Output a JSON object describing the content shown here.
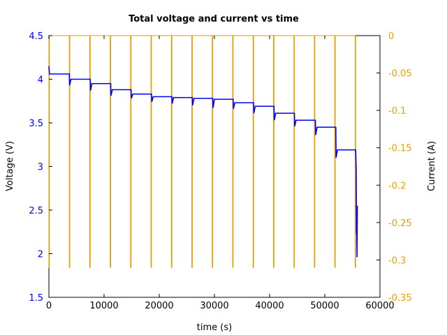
{
  "chart_data": {
    "type": "line",
    "title": "Total voltage and current vs time",
    "xlabel": "time (s)",
    "ylabel": "Voltage (V)",
    "y2label": "Current (A)",
    "xlim": [
      0,
      60000
    ],
    "ylim": [
      1.5,
      4.5
    ],
    "y2lim": [
      -0.35,
      0
    ],
    "x_ticks": [
      0,
      10000,
      20000,
      30000,
      40000,
      50000,
      60000
    ],
    "x_tick_labels": [
      "0",
      "10000",
      "20000",
      "30000",
      "40000",
      "50000",
      "60000"
    ],
    "y_ticks": [
      1.5,
      2,
      2.5,
      3,
      3.5,
      4,
      4.5
    ],
    "y_tick_labels": [
      "1.5",
      "2",
      "2.5",
      "3",
      "3.5",
      "4",
      "4.5"
    ],
    "y2_ticks": [
      0,
      -0.05,
      -0.1,
      -0.15,
      -0.2,
      -0.25,
      -0.3,
      -0.35
    ],
    "y2_tick_labels": [
      "0",
      "-0.05",
      "-0.1",
      "-0.15",
      "-0.2",
      "-0.25",
      "-0.3",
      "-0.35"
    ],
    "grid": false,
    "legend": "none",
    "colors": {
      "voltage": "#0000ff",
      "current": "#e69f00",
      "left_axis_text": "#0000ff",
      "right_axis_text": "#e69f00"
    },
    "series": [
      {
        "axis": "left",
        "x": [
          0,
          100,
          3700,
          3750,
          4000,
          7500,
          7550,
          7800,
          11200,
          11250,
          11500,
          14900,
          14950,
          15200,
          18600,
          18650,
          18900,
          22300,
          22350,
          22600,
          26000,
          26050,
          26300,
          29700,
          29750,
          30000,
          33400,
          33450,
          33700,
          37100,
          37150,
          37400,
          40800,
          40850,
          41100,
          44500,
          44550,
          44800,
          48300,
          48350,
          48600,
          52000,
          52050,
          52300,
          55600,
          55700,
          55750,
          55800,
          55850,
          55900
        ],
        "y": [
          4.15,
          4.06,
          4.06,
          3.93,
          4.0,
          4.0,
          3.87,
          3.95,
          3.95,
          3.81,
          3.88,
          3.88,
          3.78,
          3.83,
          3.83,
          3.74,
          3.8,
          3.8,
          3.72,
          3.79,
          3.79,
          3.7,
          3.78,
          3.78,
          3.67,
          3.77,
          3.77,
          3.66,
          3.73,
          3.73,
          3.61,
          3.69,
          3.69,
          3.53,
          3.61,
          3.61,
          3.46,
          3.53,
          3.53,
          3.36,
          3.45,
          3.45,
          3.1,
          3.19,
          3.19,
          2.96,
          2.25,
          2.22,
          1.96,
          2.55
        ]
      },
      {
        "axis": "right",
        "pulses": [
          {
            "start": 0,
            "end": 100
          },
          {
            "start": 3700,
            "end": 3800
          },
          {
            "start": 7400,
            "end": 7500
          },
          {
            "start": 11100,
            "end": 11200
          },
          {
            "start": 14800,
            "end": 14900
          },
          {
            "start": 18500,
            "end": 18600
          },
          {
            "start": 22200,
            "end": 22300
          },
          {
            "start": 25900,
            "end": 26000
          },
          {
            "start": 29600,
            "end": 29700
          },
          {
            "start": 33300,
            "end": 33400
          },
          {
            "start": 37000,
            "end": 37100
          },
          {
            "start": 40700,
            "end": 40800
          },
          {
            "start": 44400,
            "end": 44500
          },
          {
            "start": 48100,
            "end": 48200
          },
          {
            "start": 51800,
            "end": 51900
          },
          {
            "start": 55500,
            "end": 55600
          }
        ],
        "baseline": 0,
        "pulse_value": -0.31
      }
    ]
  }
}
